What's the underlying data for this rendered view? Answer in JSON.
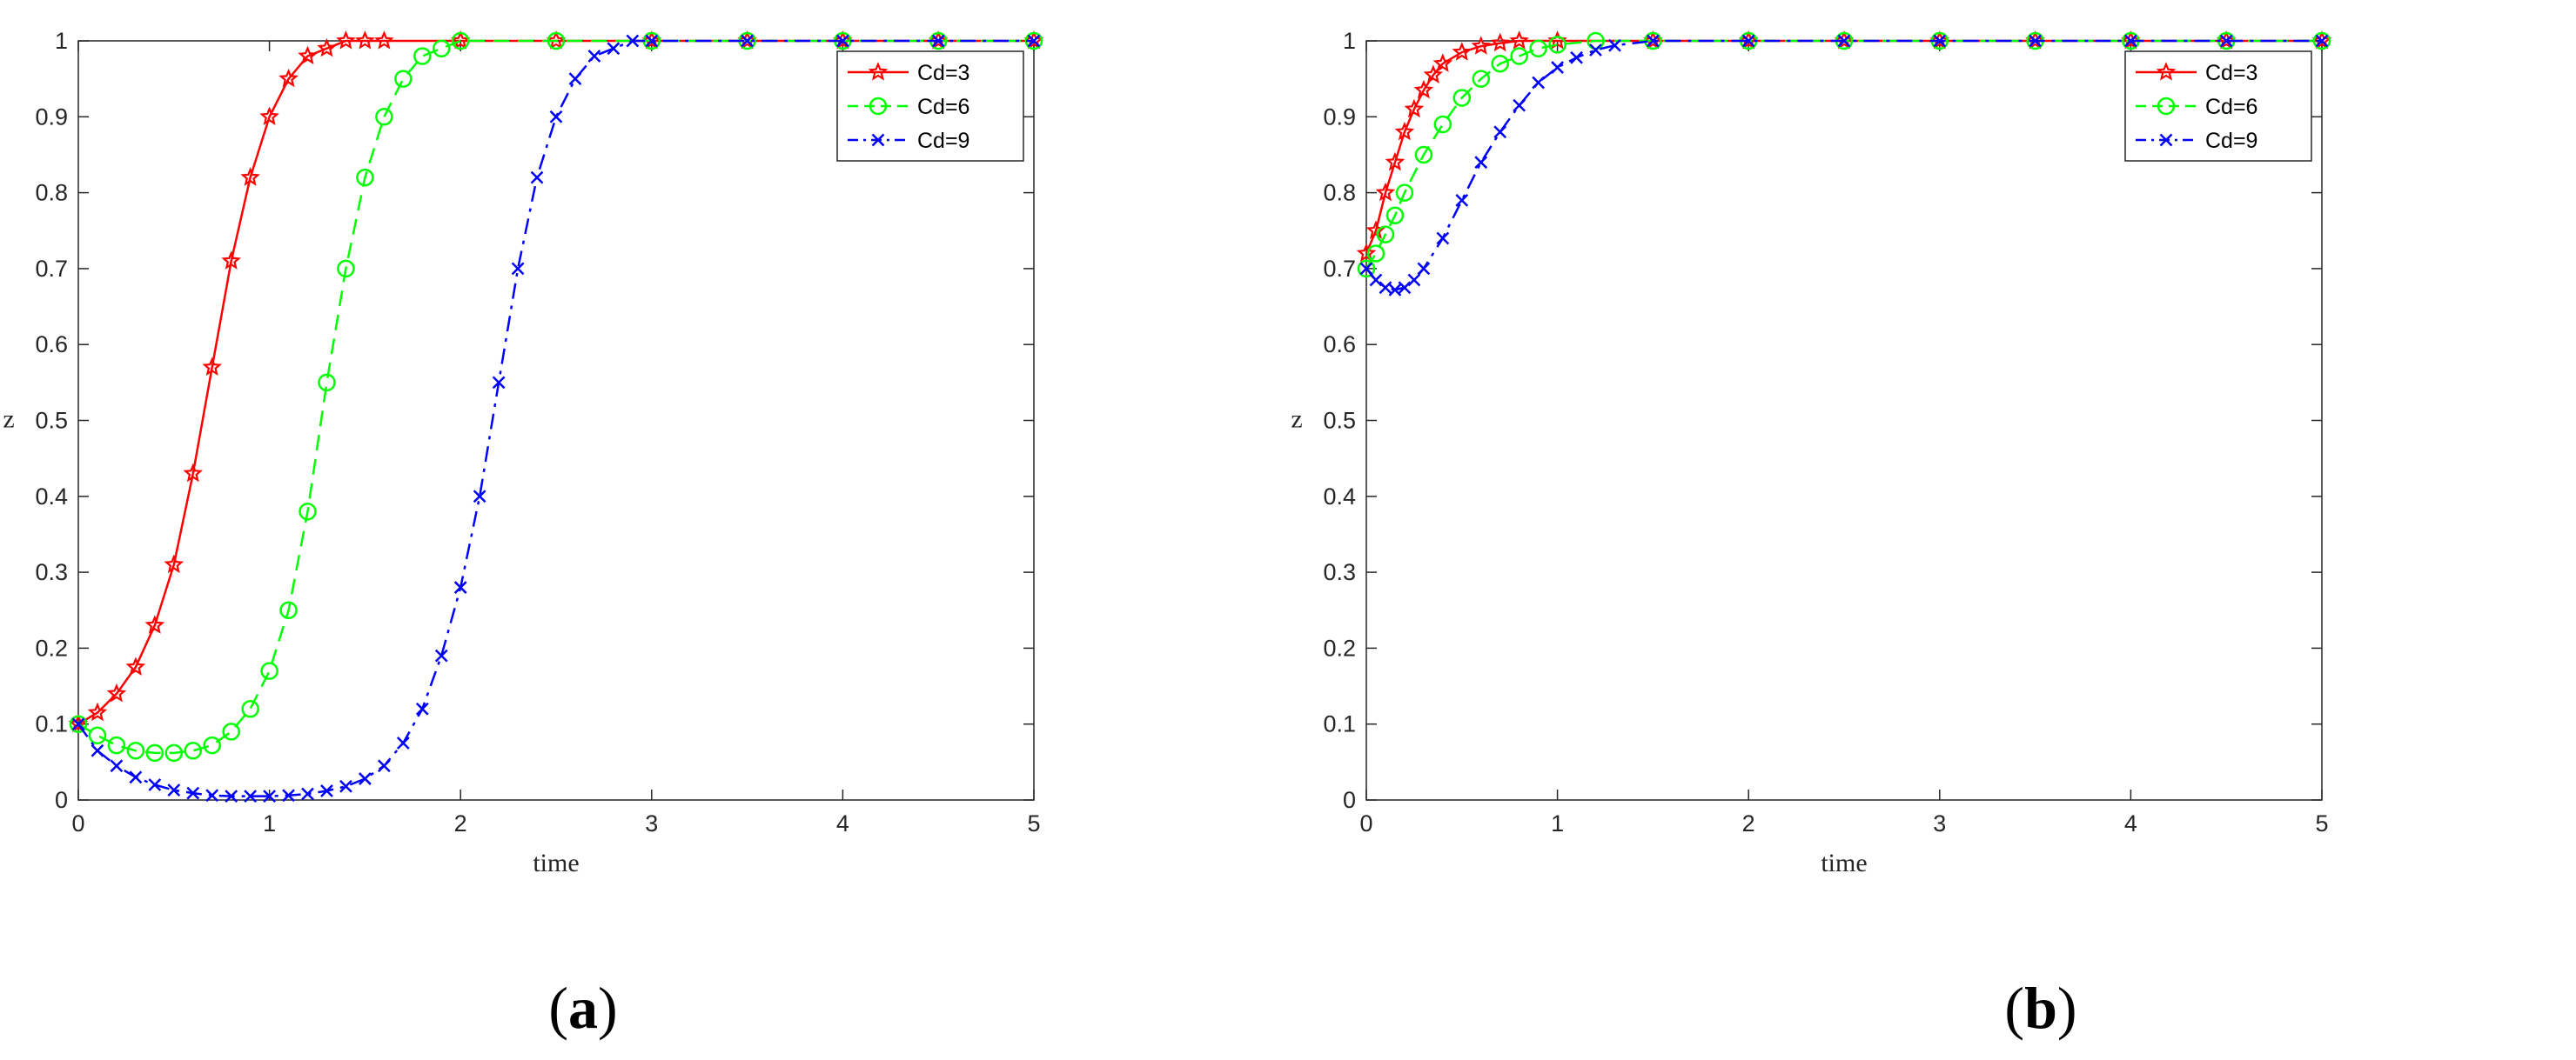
{
  "captions": [
    {
      "open": "(",
      "letter": "a",
      "close": ")"
    },
    {
      "open": "(",
      "letter": "b",
      "close": ")"
    }
  ],
  "chart_data": [
    {
      "type": "line",
      "xlabel": "time",
      "ylabel": "z",
      "xlim": [
        0,
        5
      ],
      "ylim": [
        0,
        1
      ],
      "xticks": [
        "0",
        "1",
        "2",
        "3",
        "4",
        "5"
      ],
      "yticks": [
        "0",
        "0.1",
        "0.2",
        "0.3",
        "0.4",
        "0.5",
        "0.6",
        "0.7",
        "0.8",
        "0.9",
        "1"
      ],
      "legend_position": "top-right",
      "grid": false,
      "series": [
        {
          "name": "Cd=3",
          "color": "#ff0000",
          "style": "solid",
          "marker": "star",
          "x": [
            0,
            0.1,
            0.2,
            0.3,
            0.4,
            0.5,
            0.6,
            0.7,
            0.8,
            0.9,
            1.0,
            1.1,
            1.2,
            1.3,
            1.4,
            1.5,
            1.6,
            2.0,
            2.5,
            3.0,
            3.5,
            4.0,
            4.5,
            5.0
          ],
          "y": [
            0.1,
            0.115,
            0.14,
            0.175,
            0.23,
            0.31,
            0.43,
            0.57,
            0.71,
            0.82,
            0.9,
            0.95,
            0.98,
            0.99,
            1.0,
            1.0,
            1.0,
            1.0,
            1.0,
            1.0,
            1.0,
            1.0,
            1.0,
            1.0
          ]
        },
        {
          "name": "Cd=6",
          "color": "#00ff00",
          "style": "dashed",
          "marker": "circle",
          "x": [
            0,
            0.1,
            0.2,
            0.3,
            0.4,
            0.5,
            0.6,
            0.7,
            0.8,
            0.9,
            1.0,
            1.1,
            1.2,
            1.3,
            1.4,
            1.5,
            1.6,
            1.7,
            1.8,
            1.9,
            2.0,
            2.5,
            3.0,
            3.5,
            4.0,
            4.5,
            5.0
          ],
          "y": [
            0.1,
            0.085,
            0.072,
            0.065,
            0.062,
            0.062,
            0.065,
            0.072,
            0.09,
            0.12,
            0.17,
            0.25,
            0.38,
            0.55,
            0.7,
            0.82,
            0.9,
            0.95,
            0.98,
            0.99,
            1.0,
            1.0,
            1.0,
            1.0,
            1.0,
            1.0,
            1.0
          ]
        },
        {
          "name": "Cd=9",
          "color": "#0000ff",
          "style": "dashdot",
          "marker": "x",
          "x": [
            0,
            0.1,
            0.2,
            0.3,
            0.4,
            0.5,
            0.6,
            0.7,
            0.8,
            0.9,
            1.0,
            1.1,
            1.2,
            1.3,
            1.4,
            1.5,
            1.6,
            1.7,
            1.8,
            1.9,
            2.0,
            2.1,
            2.2,
            2.3,
            2.4,
            2.5,
            2.6,
            2.7,
            2.8,
            2.9,
            3.0,
            3.5,
            4.0,
            4.5,
            5.0
          ],
          "y": [
            0.1,
            0.065,
            0.045,
            0.03,
            0.02,
            0.013,
            0.009,
            0.006,
            0.005,
            0.005,
            0.005,
            0.006,
            0.008,
            0.012,
            0.018,
            0.028,
            0.045,
            0.075,
            0.12,
            0.19,
            0.28,
            0.4,
            0.55,
            0.7,
            0.82,
            0.9,
            0.95,
            0.98,
            0.99,
            1.0,
            1.0,
            1.0,
            1.0,
            1.0,
            1.0
          ]
        }
      ]
    },
    {
      "type": "line",
      "xlabel": "time",
      "ylabel": "z",
      "xlim": [
        0,
        5
      ],
      "ylim": [
        0,
        1
      ],
      "xticks": [
        "0",
        "1",
        "2",
        "3",
        "4",
        "5"
      ],
      "yticks": [
        "0",
        "0.1",
        "0.2",
        "0.3",
        "0.4",
        "0.5",
        "0.6",
        "0.7",
        "0.8",
        "0.9",
        "1"
      ],
      "legend_position": "top-right",
      "grid": false,
      "series": [
        {
          "name": "Cd=3",
          "color": "#ff0000",
          "style": "solid",
          "marker": "star",
          "x": [
            0,
            0.05,
            0.1,
            0.15,
            0.2,
            0.25,
            0.3,
            0.35,
            0.4,
            0.5,
            0.6,
            0.7,
            0.8,
            1.0,
            1.5,
            2.0,
            2.5,
            3.0,
            3.5,
            4.0,
            4.5,
            5.0
          ],
          "y": [
            0.72,
            0.75,
            0.8,
            0.84,
            0.88,
            0.91,
            0.935,
            0.955,
            0.97,
            0.985,
            0.993,
            0.997,
            1.0,
            1.0,
            1.0,
            1.0,
            1.0,
            1.0,
            1.0,
            1.0,
            1.0,
            1.0
          ]
        },
        {
          "name": "Cd=6",
          "color": "#00ff00",
          "style": "dashed",
          "marker": "circle",
          "x": [
            0,
            0.05,
            0.1,
            0.15,
            0.2,
            0.3,
            0.4,
            0.5,
            0.6,
            0.7,
            0.8,
            0.9,
            1.0,
            1.2,
            1.5,
            2.0,
            2.5,
            3.0,
            3.5,
            4.0,
            4.5,
            5.0
          ],
          "y": [
            0.7,
            0.72,
            0.745,
            0.77,
            0.8,
            0.85,
            0.89,
            0.925,
            0.95,
            0.97,
            0.98,
            0.99,
            0.995,
            1.0,
            1.0,
            1.0,
            1.0,
            1.0,
            1.0,
            1.0,
            1.0,
            1.0
          ]
        },
        {
          "name": "Cd=9",
          "color": "#0000ff",
          "style": "dashdot",
          "marker": "x",
          "x": [
            0,
            0.05,
            0.1,
            0.15,
            0.2,
            0.25,
            0.3,
            0.4,
            0.5,
            0.6,
            0.7,
            0.8,
            0.9,
            1.0,
            1.1,
            1.2,
            1.3,
            1.5,
            2.0,
            2.5,
            3.0,
            3.5,
            4.0,
            4.5,
            5.0
          ],
          "y": [
            0.7,
            0.685,
            0.675,
            0.672,
            0.675,
            0.685,
            0.7,
            0.74,
            0.79,
            0.84,
            0.88,
            0.915,
            0.945,
            0.965,
            0.978,
            0.988,
            0.994,
            1.0,
            1.0,
            1.0,
            1.0,
            1.0,
            1.0,
            1.0,
            1.0
          ]
        }
      ]
    }
  ]
}
